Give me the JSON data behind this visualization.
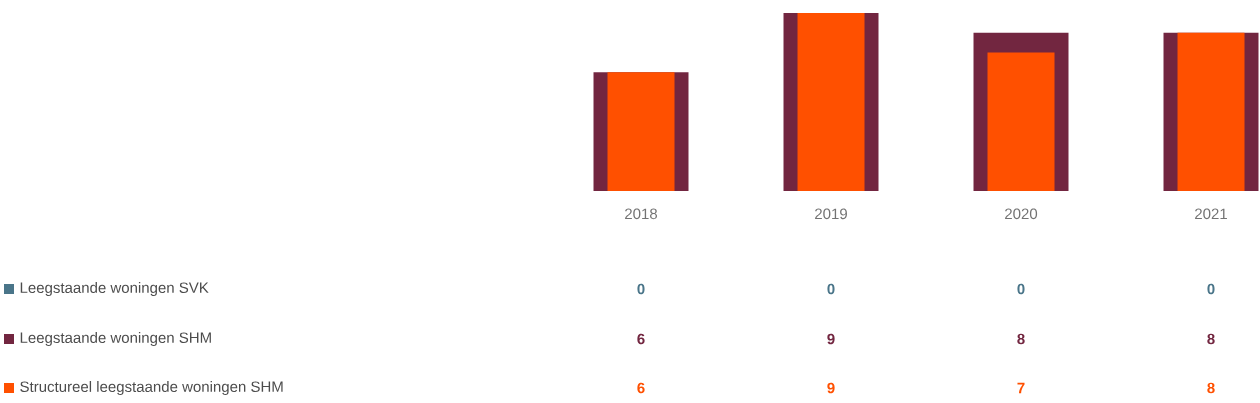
{
  "chart_data": {
    "type": "bar",
    "categories": [
      "2018",
      "2019",
      "2020",
      "2021"
    ],
    "series": [
      {
        "name": "Leegstaande woningen SVK",
        "color": "#4a7589",
        "values": [
          0,
          0,
          0,
          0
        ]
      },
      {
        "name": "Leegstaande woningen SHM",
        "color": "#722640",
        "values": [
          6,
          9,
          8,
          8
        ]
      },
      {
        "name": "Structureel leegstaande woningen SHM",
        "color": "#ff5000",
        "values": [
          6,
          9,
          7,
          8
        ]
      }
    ],
    "data_labels": true,
    "legend": "bottom left"
  }
}
